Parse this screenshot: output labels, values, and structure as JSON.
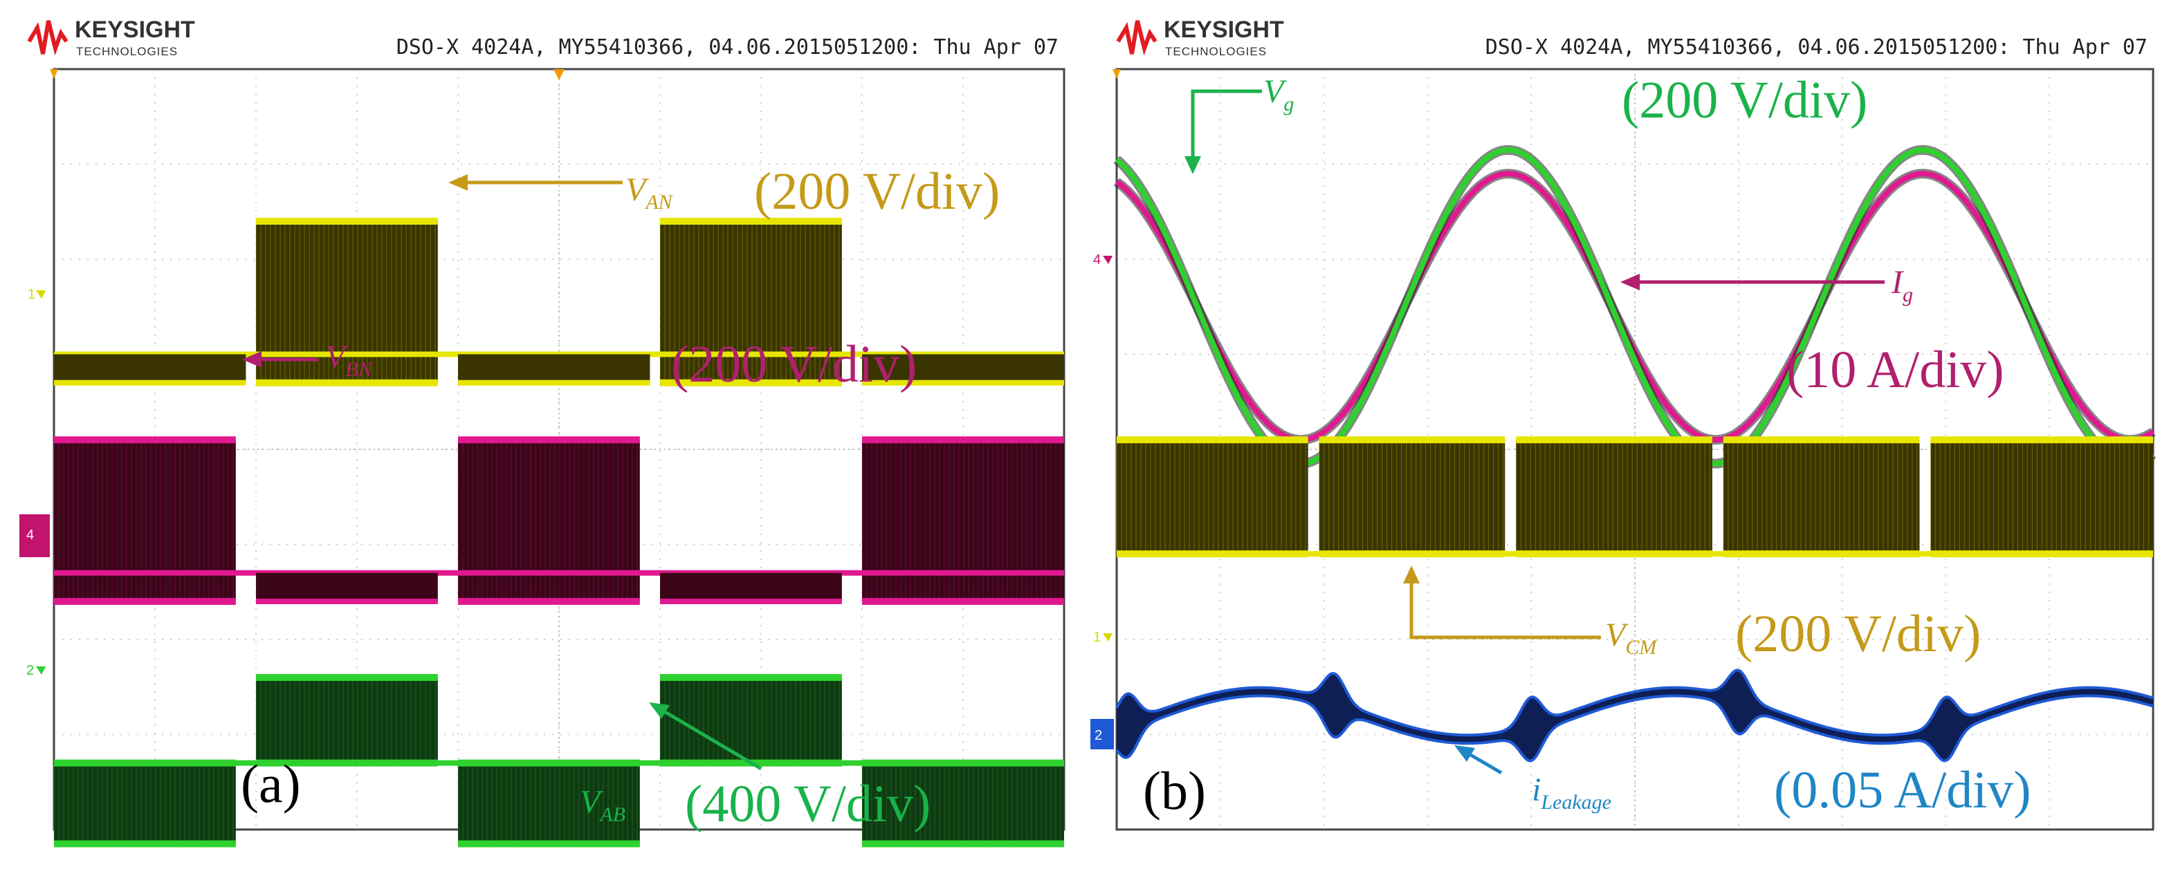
{
  "header": {
    "brand": "KEYSIGHT",
    "brand_sub": "TECHNOLOGIES",
    "instrument": "DSO-X 4024A, MY55410366, 04.06.2015051200: Thu Apr 07"
  },
  "colors": {
    "ch_yellow": "#e6e600",
    "ch_magenta": "#e0198f",
    "ch_green": "#2ed12e",
    "ch_blue": "#1f5ad6",
    "ann_gold": "#c49a18",
    "ann_magenta": "#b0206e",
    "ann_green": "#1ab24a",
    "ann_blue": "#1f86c6",
    "grid": "#bdbdbd"
  },
  "chart_data": [
    {
      "type": "line",
      "panel_label": "(a)",
      "title": "",
      "grid": true,
      "divisions": {
        "x": 10,
        "y": 8
      },
      "series": [
        {
          "name": "V_AN",
          "channel": "1",
          "color": "yellow",
          "scale_label": "(200 V/div)",
          "levels_div": {
            "low": -0.3,
            "high": 1.4
          },
          "pwm_windows": [
            [
              2.0,
              3.8
            ],
            [
              6.0,
              7.8
            ]
          ],
          "low_band_windows": [
            [
              0,
              1.9
            ],
            [
              4.0,
              5.9
            ],
            [
              8.0,
              10
            ]
          ]
        },
        {
          "name": "V_BN",
          "channel": "4",
          "color": "magenta",
          "scale_label": "(200 V/div)",
          "levels_div": {
            "low": -0.3,
            "high": 1.4
          },
          "pwm_windows": [
            [
              0,
              1.8
            ],
            [
              4.0,
              5.8
            ],
            [
              8.0,
              10
            ]
          ],
          "low_band_windows": [
            [
              2.0,
              3.8
            ],
            [
              6.0,
              7.8
            ]
          ]
        },
        {
          "name": "V_AB",
          "channel": "2",
          "color": "green",
          "scale_label": "(400 V/div)",
          "levels_div": {
            "low": -0.85,
            "high": 0.9
          },
          "positive_windows": [
            [
              2.0,
              3.8
            ],
            [
              6.0,
              7.8
            ]
          ],
          "negative_windows": [
            [
              0,
              1.8
            ],
            [
              4.0,
              5.8
            ],
            [
              8.0,
              10
            ]
          ]
        }
      ]
    },
    {
      "type": "line",
      "panel_label": "(b)",
      "title": "",
      "grid": true,
      "divisions": {
        "x": 10,
        "y": 8
      },
      "series": [
        {
          "name": "V_g",
          "channel": "3",
          "color": "green",
          "scale_label": "(200 V/div)",
          "waveform": "sine",
          "amplitude_div": 1.65,
          "cycles_on_screen": 2.5
        },
        {
          "name": "I_g",
          "channel": "4",
          "color": "magenta",
          "scale_label": "(10 A/div)",
          "waveform": "sine",
          "amplitude_div": 1.4,
          "cycles_on_screen": 2.5
        },
        {
          "name": "V_CM",
          "channel": "1",
          "color": "yellow",
          "scale_label": "(200 V/div)",
          "waveform": "pwm",
          "levels_div": {
            "low": 0.0,
            "high": 1.2
          },
          "gap_positions_div": [
            1.9,
            3.8,
            5.8,
            7.8
          ]
        },
        {
          "name": "i_Leakage",
          "channel": "2",
          "color": "blue",
          "scale_label": "(0.05 A/div)",
          "waveform": "noisy-sine",
          "amplitude_div": 0.25,
          "spike_positions_div": [
            0.1,
            2.1,
            4.0,
            6.0,
            8.0
          ]
        }
      ]
    }
  ],
  "labels_a": {
    "van": "V",
    "van_sub": "AN",
    "van_scale": "(200 V/div)",
    "vbn": "V",
    "vbn_sub": "BN",
    "vbn_scale": "(200 V/div)",
    "vab": "V",
    "vab_sub": "AB",
    "vab_scale": "(400 V/div)",
    "panel": "(a)",
    "ch1": "1",
    "ch4": "4",
    "ch2": "2"
  },
  "labels_b": {
    "vg": "V",
    "vg_sub": "g",
    "vg_scale": "(200 V/div)",
    "ig": "I",
    "ig_sub": "g",
    "ig_scale": "(10 A/div)",
    "vcm": "V",
    "vcm_sub": "CM",
    "vcm_scale": "(200 V/div)",
    "il": "i",
    "il_sub": "Leakage",
    "il_scale": "(0.05 A/div)",
    "panel": "(b)",
    "ch4": "4",
    "ch1": "1",
    "ch2": "2"
  }
}
